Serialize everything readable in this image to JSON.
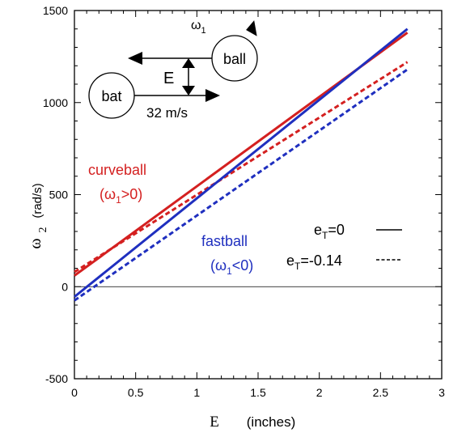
{
  "chart_data": {
    "type": "line",
    "xlabel_symbol": "E",
    "xlabel_unit": "(inches)",
    "ylabel_symbol": "ω",
    "ylabel_sub": "2",
    "ylabel_unit": "(rad/s)",
    "xlim": [
      0,
      3
    ],
    "ylim": [
      -500,
      1500
    ],
    "xticks": [
      0,
      0.5,
      1,
      1.5,
      2,
      2.5,
      3
    ],
    "yticks": [
      -500,
      0,
      500,
      1000,
      1500
    ],
    "xtick_labels": [
      "0",
      "0.5",
      "1",
      "1.5",
      "2",
      "2.5",
      "3"
    ],
    "ytick_labels": [
      "-500",
      "0",
      "500",
      "1000",
      "1500"
    ],
    "zero_line": true,
    "series": [
      {
        "group": "curveball",
        "e_T": "0",
        "style": "solid",
        "color": "#d42020",
        "x": [
          0,
          2.72
        ],
        "y": [
          60,
          1380
        ]
      },
      {
        "group": "curveball",
        "e_T": "-0.14",
        "style": "dashed",
        "color": "#d42020",
        "x": [
          0,
          2.72
        ],
        "y": [
          80,
          1220
        ]
      },
      {
        "group": "fastball",
        "e_T": "0",
        "style": "solid",
        "color": "#1f2fbf",
        "x": [
          0,
          2.72
        ],
        "y": [
          -55,
          1400
        ]
      },
      {
        "group": "fastball",
        "e_T": "-0.14",
        "style": "dashed",
        "color": "#1f2fbf",
        "x": [
          0,
          2.72
        ],
        "y": [
          -75,
          1180
        ]
      }
    ],
    "annotations": {
      "curveball": {
        "name": "curveball",
        "cond_open": "(ω",
        "cond_sub": "1",
        "cond_close": ">0)"
      },
      "fastball": {
        "name": "fastball",
        "cond_open": "(ω",
        "cond_sub": "1",
        "cond_close": "<0)"
      }
    },
    "legend": {
      "placement": "right",
      "solid": {
        "prefix": "e",
        "sub": "T",
        "value": "=0"
      },
      "dashed": {
        "prefix": "e",
        "sub": "T",
        "value": "=-0.14"
      }
    },
    "diagram": {
      "ball_label": "ball",
      "bat_label": "bat",
      "omega_symbol": "ω",
      "omega_sub": "1",
      "offset_label": "E",
      "speed_label": "32 m/s"
    }
  }
}
